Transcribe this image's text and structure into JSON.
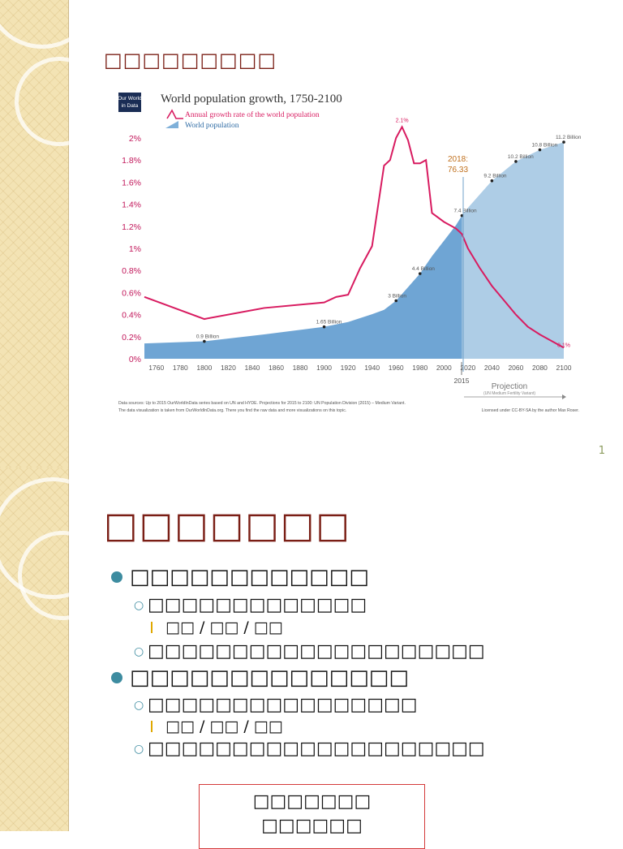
{
  "slide1": {
    "title": "□□□□□□□□□",
    "slide_number": "1",
    "chart_header": {
      "logo_line1": "Our World",
      "logo_line2": "in Data",
      "title": "World population growth, 1750-2100",
      "legend_growth": "Annual growth rate of the world population",
      "legend_population": "World population",
      "callout_line1": "2018:",
      "callout_line2": "76.33",
      "marker_2015": "2015",
      "projection_label": "Projection",
      "projection_sub": "(UN Medium Fertility Variant)",
      "source_line1": "Data sources:  Up to 2015 OurWorldInData series based on UN and HYDE. Projections for 2015 to 2100: UN Population Division (2015) – Medium Variant.",
      "source_line2": "The data visualization is taken from OurWorldInData.org. There you find the raw data and more visualizations on this topic.",
      "license": "Licensed under CC-BY-SA by the author Max Roser."
    },
    "colors": {
      "growth_line": "#d81b60",
      "population_area": "#6fa5d4",
      "projection_area": "#aecde6",
      "axis_labels": "#c2185b",
      "callout": "#c0701d"
    }
  },
  "chart_data": {
    "type": "area",
    "title": "World population growth, 1750-2100",
    "xlim": [
      1750,
      2100
    ],
    "ylim": [
      0,
      2.1
    ],
    "x_ticks": [
      "1760",
      "1780",
      "1800",
      "1820",
      "1840",
      "1860",
      "1880",
      "1900",
      "1920",
      "1940",
      "1960",
      "1980",
      "2000",
      "2020",
      "2040",
      "2060",
      "2080",
      "2100"
    ],
    "y_ticks": [
      "0%",
      "0.2%",
      "0.4%",
      "0.6%",
      "0.8%",
      "1%",
      "1.2%",
      "1.4%",
      "1.6%",
      "1.8%",
      "2%"
    ],
    "series": [
      {
        "name": "Annual growth rate of the world population",
        "x": [
          1750,
          1800,
          1850,
          1900,
          1910,
          1920,
          1930,
          1940,
          1950,
          1955,
          1960,
          1965,
          1970,
          1975,
          1980,
          1985,
          1990,
          2000,
          2010,
          2015,
          2020,
          2030,
          2040,
          2050,
          2060,
          2070,
          2080,
          2090,
          2100
        ],
        "y": [
          0.56,
          0.36,
          0.46,
          0.51,
          0.56,
          0.58,
          0.82,
          1.02,
          1.75,
          1.8,
          2.0,
          2.1,
          1.98,
          1.77,
          1.77,
          1.8,
          1.32,
          1.24,
          1.18,
          1.13,
          1.0,
          0.82,
          0.66,
          0.53,
          0.4,
          0.29,
          0.22,
          0.16,
          0.1
        ],
        "end_labels": {
          "peak": "2.1%",
          "end": "0.1%"
        }
      },
      {
        "name": "World population",
        "x": [
          1750,
          1800,
          1850,
          1900,
          1920,
          1940,
          1950,
          1960,
          1970,
          1980,
          1990,
          2000,
          2010,
          2015,
          2020,
          2030,
          2040,
          2050,
          2060,
          2070,
          2080,
          2090,
          2100
        ],
        "population_billion": [
          0.79,
          0.9,
          1.26,
          1.65,
          1.9,
          2.3,
          2.53,
          3.0,
          3.7,
          4.4,
          5.3,
          6.1,
          6.9,
          7.4,
          7.8,
          8.5,
          9.2,
          9.7,
          10.2,
          10.5,
          10.8,
          11.0,
          11.2
        ],
        "labels": [
          {
            "x": 1800,
            "text": "0.9 Billion"
          },
          {
            "x": 1900,
            "text": "1.65 Billion"
          },
          {
            "x": 1960,
            "text": "3 Billion"
          },
          {
            "x": 1980,
            "text": "4.4 Billion"
          },
          {
            "x": 2015,
            "text": "7.4 Billion"
          },
          {
            "x": 2040,
            "text": "9.2 Billion"
          },
          {
            "x": 2060,
            "text": "10.2 Billion"
          },
          {
            "x": 2080,
            "text": "10.8 Billion"
          },
          {
            "x": 2100,
            "text": "11.2 Billion"
          }
        ]
      }
    ],
    "legend": "top-left",
    "grid": false
  },
  "slide2": {
    "title": "□□□□□□□",
    "items": [
      {
        "level": 1,
        "text": "□□□□□□□□□□□□"
      },
      {
        "level": 2,
        "text": "□□□□□□□□□□□□□"
      },
      {
        "level": 3,
        "text": "□□ / □□ / □□"
      },
      {
        "level": 2,
        "text": "□□□□□□□□□□□□□□□□□□□□"
      },
      {
        "level": 1,
        "text": "□□□□□□□□□□□□□□"
      },
      {
        "level": 2,
        "text": "□□□□□□□□□□□□□□□□"
      },
      {
        "level": 3,
        "text": "□□ / □□ / □□"
      },
      {
        "level": 2,
        "text": "□□□□□□□□□□□□□□□□□□□□"
      }
    ],
    "box_line1": "□□□□□□□",
    "box_line2": "□□□□□□"
  }
}
